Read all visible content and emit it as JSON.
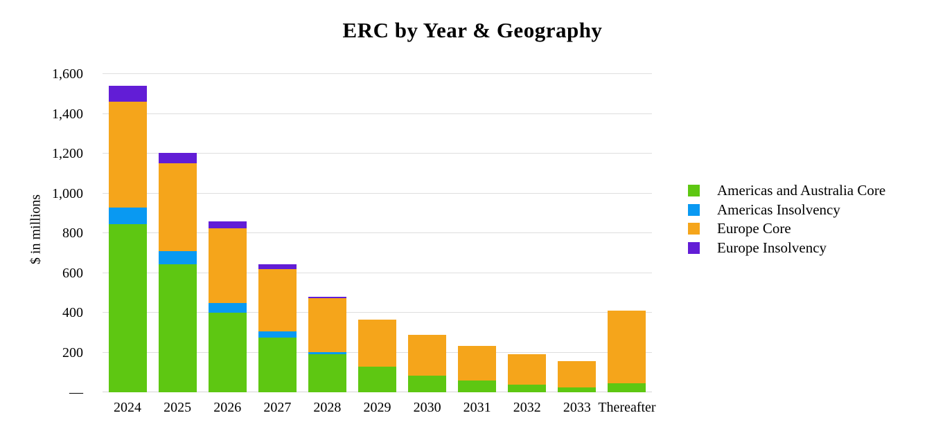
{
  "chart_data": {
    "type": "bar",
    "stacked": true,
    "title": "ERC by Year & Geography",
    "xlabel": "",
    "ylabel": "$ in millions",
    "ylim": [
      0,
      1600
    ],
    "ytick_step": 200,
    "grid": "horizontal",
    "legend_position": "right",
    "categories": [
      "2024",
      "2025",
      "2026",
      "2027",
      "2028",
      "2029",
      "2030",
      "2031",
      "2032",
      "2033",
      "Thereafter"
    ],
    "series": [
      {
        "name": "Americas and Australia Core",
        "color": "#5EC712",
        "values": [
          845,
          645,
          400,
          275,
          190,
          130,
          85,
          59,
          38,
          25,
          45
        ]
      },
      {
        "name": "Americas Insolvency",
        "color": "#0999F2",
        "values": [
          85,
          65,
          48,
          30,
          12,
          0,
          0,
          0,
          0,
          0,
          0
        ]
      },
      {
        "name": "Europe Core",
        "color": "#F5A51B",
        "values": [
          530,
          440,
          377,
          315,
          270,
          235,
          205,
          174,
          152,
          133,
          365
        ]
      },
      {
        "name": "Europe Insolvency",
        "color": "#621DD6",
        "values": [
          80,
          55,
          35,
          25,
          8,
          0,
          0,
          0,
          0,
          0,
          0
        ]
      }
    ],
    "stack_totals": [
      1540,
      1205,
      860,
      645,
      480,
      365,
      290,
      233,
      190,
      158,
      410
    ],
    "yticks": [
      {
        "value": 0,
        "label": "—"
      },
      {
        "value": 200,
        "label": "200"
      },
      {
        "value": 400,
        "label": "400"
      },
      {
        "value": 600,
        "label": "600"
      },
      {
        "value": 800,
        "label": "800"
      },
      {
        "value": 1000,
        "label": "1,000"
      },
      {
        "value": 1200,
        "label": "1,200"
      },
      {
        "value": 1400,
        "label": "1,400"
      },
      {
        "value": 1600,
        "label": "1,600"
      }
    ]
  },
  "colors": {
    "background": "#FFFFFF",
    "gridline": "#DEDEDE",
    "text": "#000000"
  }
}
